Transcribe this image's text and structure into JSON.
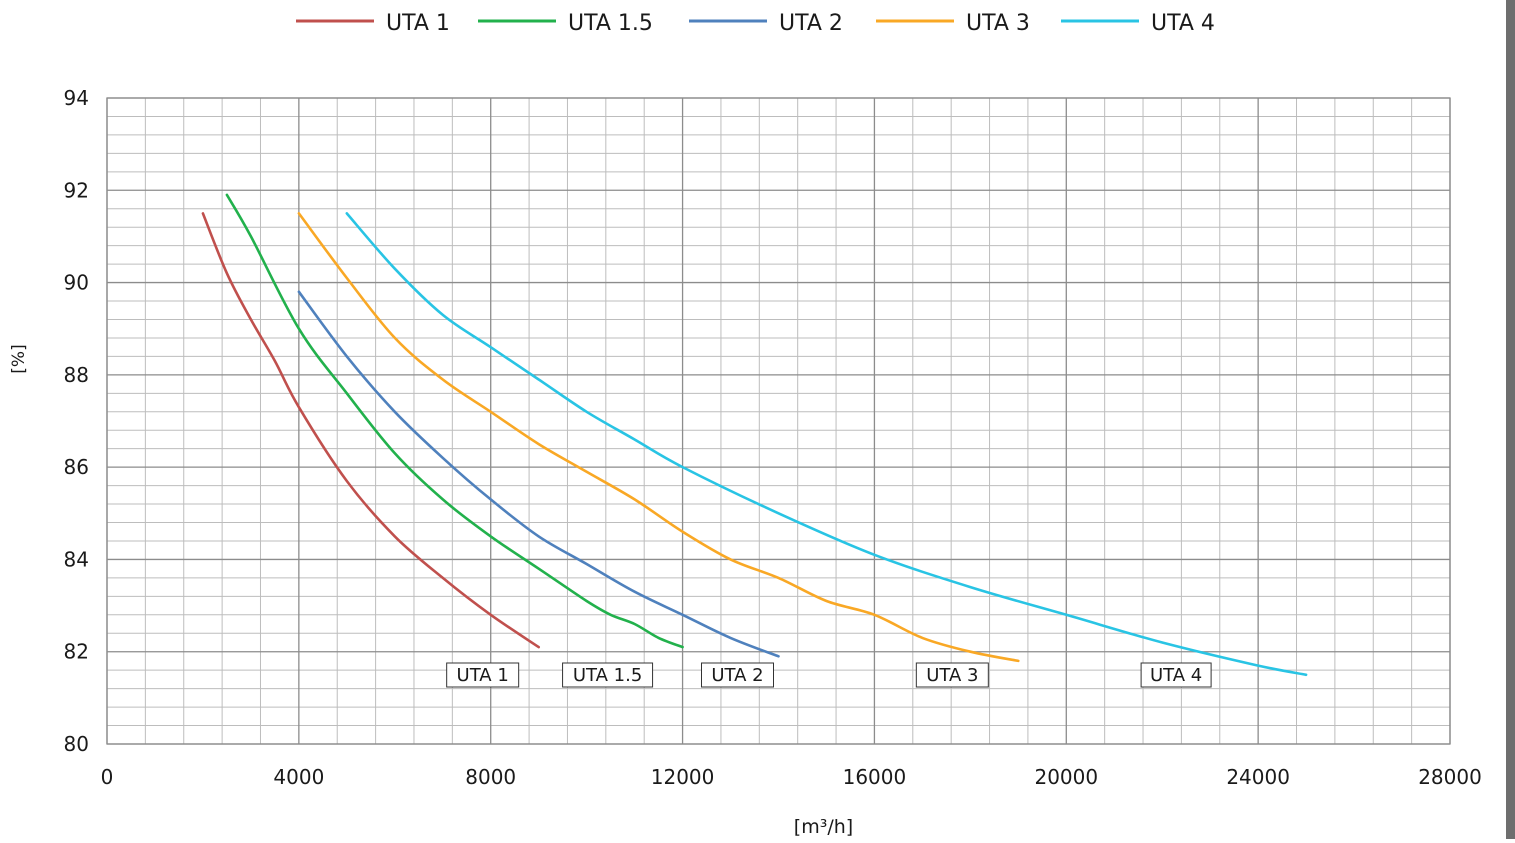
{
  "chart_data": {
    "type": "line",
    "title": "",
    "xlabel": "[m³/h]",
    "ylabel": "[%]",
    "xlim": [
      0,
      28000
    ],
    "ylim": [
      80,
      94
    ],
    "x_major_ticks": [
      0,
      4000,
      8000,
      12000,
      16000,
      20000,
      24000,
      28000
    ],
    "x_tick_labels": [
      "0",
      "4000",
      "8000",
      "12000",
      "16000",
      "20000",
      "24000",
      "28000"
    ],
    "y_major_ticks": [
      80,
      82,
      84,
      86,
      88,
      90,
      92,
      94
    ],
    "y_tick_labels": [
      "80",
      "82",
      "84",
      "86",
      "88",
      "90",
      "92",
      "94"
    ],
    "grid": true,
    "legend_position": "top-center",
    "series": [
      {
        "name": "UTA 1",
        "color": "#c0504d",
        "end_label": "UTA 1",
        "points": [
          [
            2000,
            91.5
          ],
          [
            2500,
            90.2
          ],
          [
            3000,
            89.2
          ],
          [
            3500,
            88.3
          ],
          [
            4000,
            87.3
          ],
          [
            5000,
            85.7
          ],
          [
            6000,
            84.5
          ],
          [
            7000,
            83.6
          ],
          [
            8000,
            82.8
          ],
          [
            9000,
            82.1
          ]
        ]
      },
      {
        "name": "UTA 1.5",
        "color": "#22b14c",
        "end_label": "UTA 1.5",
        "points": [
          [
            2500,
            91.9
          ],
          [
            3000,
            91.0
          ],
          [
            4000,
            89.0
          ],
          [
            5000,
            87.6
          ],
          [
            6000,
            86.3
          ],
          [
            7000,
            85.3
          ],
          [
            8000,
            84.5
          ],
          [
            9000,
            83.8
          ],
          [
            10000,
            83.1
          ],
          [
            10500,
            82.8
          ],
          [
            11000,
            82.6
          ],
          [
            11500,
            82.3
          ],
          [
            12000,
            82.1
          ]
        ]
      },
      {
        "name": "UTA 2",
        "color": "#4f81bd",
        "end_label": "UTA 2",
        "points": [
          [
            4000,
            89.8
          ],
          [
            5000,
            88.4
          ],
          [
            6000,
            87.2
          ],
          [
            7000,
            86.2
          ],
          [
            8000,
            85.3
          ],
          [
            9000,
            84.5
          ],
          [
            10000,
            83.9
          ],
          [
            11000,
            83.3
          ],
          [
            12000,
            82.8
          ],
          [
            13000,
            82.3
          ],
          [
            14000,
            81.9
          ]
        ]
      },
      {
        "name": "UTA 3",
        "color": "#f9a825",
        "end_label": "UTA 3",
        "points": [
          [
            4000,
            91.5
          ],
          [
            5000,
            90.1
          ],
          [
            6000,
            88.8
          ],
          [
            7000,
            87.9
          ],
          [
            8000,
            87.2
          ],
          [
            9000,
            86.5
          ],
          [
            10000,
            85.9
          ],
          [
            11000,
            85.3
          ],
          [
            12000,
            84.6
          ],
          [
            13000,
            84.0
          ],
          [
            14000,
            83.6
          ],
          [
            15000,
            83.1
          ],
          [
            16000,
            82.8
          ],
          [
            17000,
            82.3
          ],
          [
            18000,
            82.0
          ],
          [
            19000,
            81.8
          ]
        ]
      },
      {
        "name": "UTA 4",
        "color": "#29c4e4",
        "end_label": "UTA 4",
        "points": [
          [
            5000,
            91.5
          ],
          [
            6000,
            90.3
          ],
          [
            7000,
            89.3
          ],
          [
            8000,
            88.6
          ],
          [
            9000,
            87.9
          ],
          [
            10000,
            87.2
          ],
          [
            11000,
            86.6
          ],
          [
            12000,
            86.0
          ],
          [
            14000,
            85.0
          ],
          [
            16000,
            84.1
          ],
          [
            18000,
            83.4
          ],
          [
            20000,
            82.8
          ],
          [
            22000,
            82.2
          ],
          [
            24000,
            81.7
          ],
          [
            25000,
            81.5
          ]
        ]
      }
    ]
  }
}
